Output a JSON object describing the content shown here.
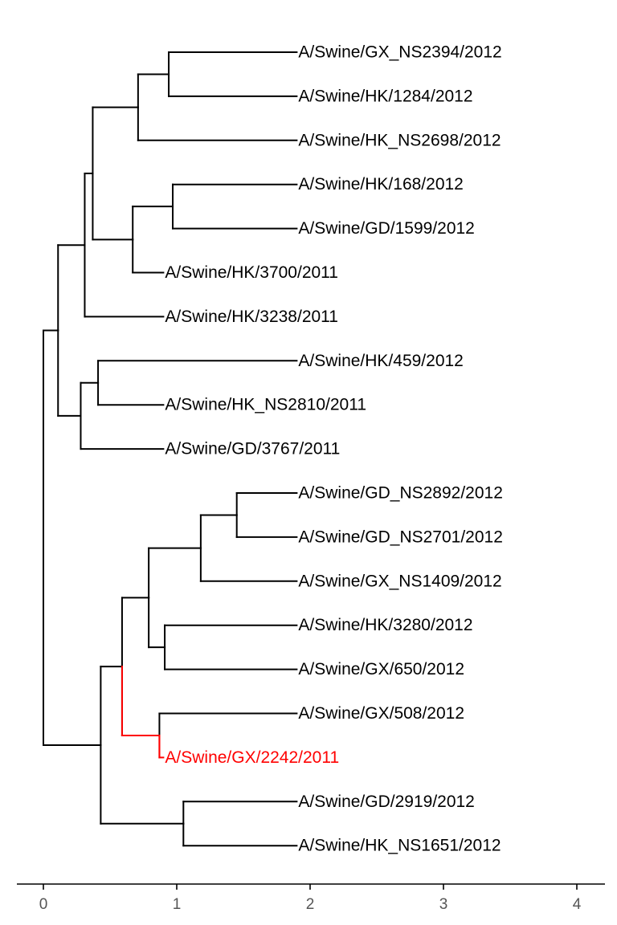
{
  "tree": {
    "colors": {
      "default": "#000000",
      "highlight": "#ff0000"
    },
    "tips": [
      {
        "label": "A/Swine/GX_NS2394/2012",
        "highlight": false
      },
      {
        "label": "A/Swine/HK/1284/2012",
        "highlight": false
      },
      {
        "label": "A/Swine/HK_NS2698/2012",
        "highlight": false
      },
      {
        "label": "A/Swine/HK/168/2012",
        "highlight": false
      },
      {
        "label": "A/Swine/GD/1599/2012",
        "highlight": false
      },
      {
        "label": "A/Swine/HK/3700/2011",
        "highlight": false
      },
      {
        "label": "A/Swine/HK/3238/2011",
        "highlight": false
      },
      {
        "label": "A/Swine/HK/459/2012",
        "highlight": false
      },
      {
        "label": "A/Swine/HK_NS2810/2011",
        "highlight": false
      },
      {
        "label": "A/Swine/GD/3767/2011",
        "highlight": false
      },
      {
        "label": "A/Swine/GD_NS2892/2012",
        "highlight": false
      },
      {
        "label": "A/Swine/GD_NS2701/2012",
        "highlight": false
      },
      {
        "label": "A/Swine/GX_NS1409/2012",
        "highlight": false
      },
      {
        "label": "A/Swine/HK/3280/2012",
        "highlight": false
      },
      {
        "label": "A/Swine/GX/650/2012",
        "highlight": false
      },
      {
        "label": "A/Swine/GX/508/2012",
        "highlight": false
      },
      {
        "label": "A/Swine/GX/2242/2011",
        "highlight": true
      },
      {
        "label": "A/Swine/GD/2919/2012",
        "highlight": false
      },
      {
        "label": "A/Swine/HK_NS1651/2012",
        "highlight": false
      }
    ],
    "axis": {
      "ticks": [
        0,
        1,
        2,
        3,
        4
      ],
      "range": [
        -0.2,
        4.2
      ]
    }
  }
}
